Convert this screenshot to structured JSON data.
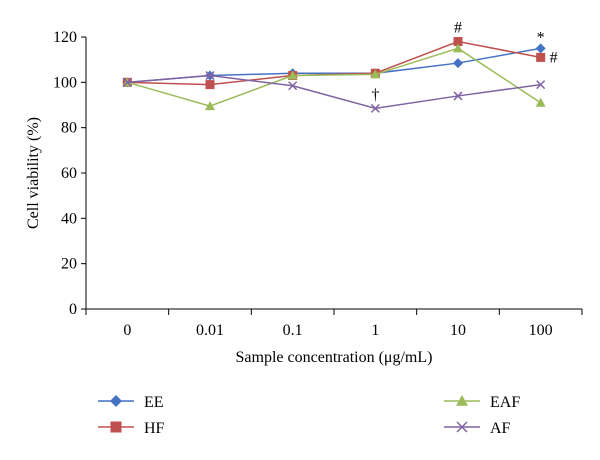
{
  "chart_data": {
    "type": "line",
    "xlabel": "Sample concentration (μg/mL)",
    "ylabel": "Cell viability (%)",
    "categories": [
      "0",
      "0.01",
      "0.1",
      "1",
      "10",
      "100"
    ],
    "ylim": [
      0,
      120
    ],
    "yticks": [
      0,
      20,
      40,
      60,
      80,
      100,
      120
    ],
    "grid": false,
    "legend_position": "bottom",
    "series": [
      {
        "name": "EE",
        "values": [
          100,
          103,
          104,
          104,
          108.5,
          115
        ],
        "color": "#4472C4",
        "marker": "diamond"
      },
      {
        "name": "HF",
        "values": [
          100,
          99,
          103,
          104,
          118,
          111
        ],
        "color": "#C0504D",
        "marker": "square"
      },
      {
        "name": "EAF",
        "values": [
          100,
          89.5,
          103,
          103.5,
          115,
          91
        ],
        "color": "#9BBB59",
        "marker": "triangle"
      },
      {
        "name": "AF",
        "values": [
          100,
          103,
          98.5,
          88.5,
          94,
          99
        ],
        "color": "#8064A2",
        "marker": "x"
      }
    ],
    "annotations": [
      {
        "text": "#",
        "series": "HF",
        "category": "10"
      },
      {
        "text": "*",
        "series": "EE",
        "category": "100"
      },
      {
        "text": "#",
        "series": "HF",
        "category": "100"
      },
      {
        "text": "†",
        "series": "AF",
        "category": "1"
      }
    ]
  }
}
